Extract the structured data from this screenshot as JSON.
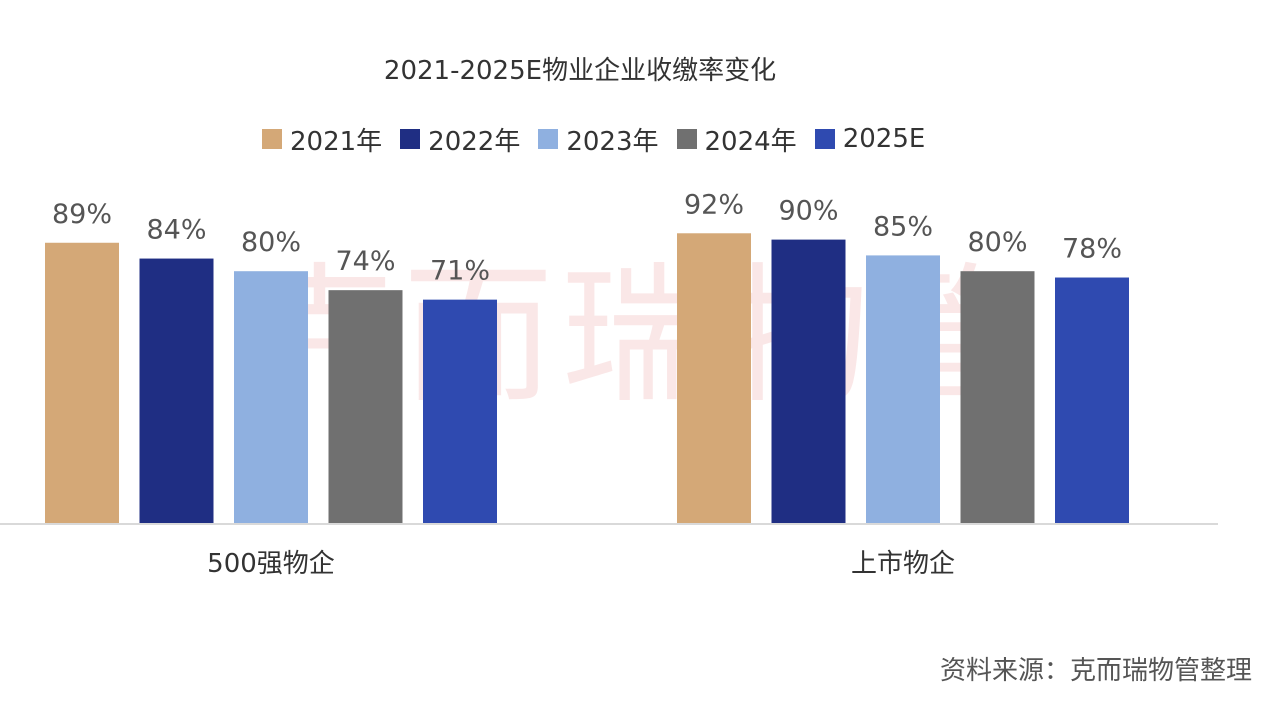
{
  "chart_data": {
    "type": "bar",
    "title": "2021-2025E物业企业收缴率变化",
    "categories": [
      "500强物企",
      "上市物企"
    ],
    "series": [
      {
        "name": "2021年",
        "color": "#d4a877",
        "values": [
          89,
          92
        ],
        "labels": [
          "89%",
          "92%"
        ]
      },
      {
        "name": "2022年",
        "color": "#1f2e83",
        "values": [
          84,
          90
        ],
        "labels": [
          "84%",
          "90%"
        ]
      },
      {
        "name": "2023年",
        "color": "#8fb0e0",
        "values": [
          80,
          85
        ],
        "labels": [
          "80%",
          "85%"
        ]
      },
      {
        "name": "2024年",
        "color": "#707070",
        "values": [
          74,
          80
        ],
        "labels": [
          "74%",
          "80%"
        ]
      },
      {
        "name": "2025E",
        "color": "#2f4ab0",
        "values": [
          71,
          78
        ],
        "labels": [
          "71%",
          "78%"
        ]
      }
    ],
    "value_unit": "%",
    "ylim": [
      0,
      100
    ],
    "grid": false,
    "legend_position": "top",
    "data_labels": true
  },
  "source_note": "资料来源：克而瑞物管整理",
  "watermark": "克而瑞物管"
}
